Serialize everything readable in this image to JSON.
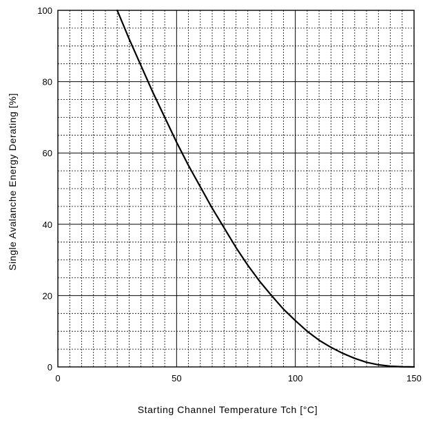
{
  "chart_data": {
    "type": "line",
    "title": "",
    "xlabel": "Starting Channel Temperature Tch [°C]",
    "ylabel": "Single Avalanche Energy Derating [%]",
    "xlim": [
      0,
      150
    ],
    "ylim": [
      0,
      100
    ],
    "x_ticks": [
      0,
      50,
      100,
      150
    ],
    "y_ticks": [
      0,
      20,
      40,
      60,
      80,
      100
    ],
    "x_tick_labels": [
      "0",
      "50",
      "100",
      "150"
    ],
    "y_tick_labels": [
      "0",
      "20",
      "40",
      "60",
      "80",
      "100"
    ],
    "grid": {
      "major": true,
      "minor": true,
      "x_minor_step": 5,
      "y_minor_step": 5
    },
    "legend": "none",
    "line_color": "#000000",
    "series": [
      {
        "x": [
          25,
          30,
          35,
          40,
          45,
          50,
          55,
          60,
          65,
          70,
          75,
          80,
          85,
          90,
          95,
          100,
          105,
          110,
          115,
          120,
          125,
          130,
          135,
          140,
          145,
          150
        ],
        "y": [
          100,
          92,
          84.5,
          77,
          70,
          63,
          56.5,
          50.5,
          44.5,
          39,
          33.5,
          28.5,
          24,
          20,
          16.2,
          13,
          10,
          7.5,
          5.5,
          3.8,
          2.4,
          1.3,
          0.6,
          0.2,
          0.05,
          0
        ]
      }
    ]
  }
}
